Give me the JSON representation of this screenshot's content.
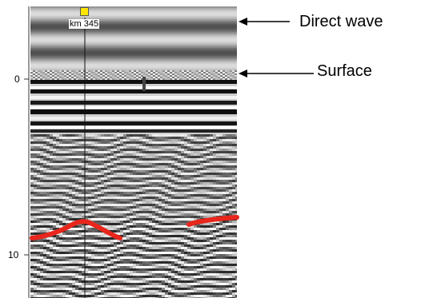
{
  "axis": {
    "ticks": [
      {
        "label": "0",
        "value": 0
      },
      {
        "label": "10",
        "value": 10
      }
    ]
  },
  "marker": {
    "label": "km 345",
    "color": "#ffe600"
  },
  "annotations": {
    "direct_wave": "Direct wave",
    "surface": "Surface"
  },
  "colors": {
    "reflector": "#e8261c",
    "background": "#ffffff"
  }
}
